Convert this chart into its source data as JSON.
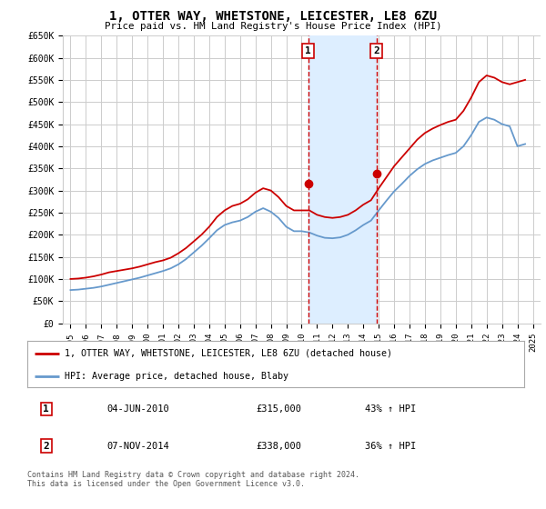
{
  "title": "1, OTTER WAY, WHETSTONE, LEICESTER, LE8 6ZU",
  "subtitle": "Price paid vs. HM Land Registry's House Price Index (HPI)",
  "ylim": [
    0,
    650000
  ],
  "yticks": [
    0,
    50000,
    100000,
    150000,
    200000,
    250000,
    300000,
    350000,
    400000,
    450000,
    500000,
    550000,
    600000,
    650000
  ],
  "ytick_labels": [
    "£0",
    "£50K",
    "£100K",
    "£150K",
    "£200K",
    "£250K",
    "£300K",
    "£350K",
    "£400K",
    "£450K",
    "£500K",
    "£550K",
    "£600K",
    "£650K"
  ],
  "xticks": [
    1995,
    1996,
    1997,
    1998,
    1999,
    2000,
    2001,
    2002,
    2003,
    2004,
    2005,
    2006,
    2007,
    2008,
    2009,
    2010,
    2011,
    2012,
    2013,
    2014,
    2015,
    2016,
    2017,
    2018,
    2019,
    2020,
    2021,
    2022,
    2023,
    2024,
    2025
  ],
  "xlim": [
    1994.5,
    2025.5
  ],
  "transaction1_x": 2010.42,
  "transaction1_price": 315000,
  "transaction1_label": "04-JUN-2010",
  "transaction1_hpi": "43% ↑ HPI",
  "transaction2_x": 2014.85,
  "transaction2_price": 338000,
  "transaction2_label": "07-NOV-2014",
  "transaction2_hpi": "36% ↑ HPI",
  "red_line_color": "#cc0000",
  "blue_line_color": "#6699cc",
  "shade_color": "#ddeeff",
  "grid_color": "#cccccc",
  "background_color": "#ffffff",
  "legend_label_red": "1, OTTER WAY, WHETSTONE, LEICESTER, LE8 6ZU (detached house)",
  "legend_label_blue": "HPI: Average price, detached house, Blaby",
  "footnote": "Contains HM Land Registry data © Crown copyright and database right 2024.\nThis data is licensed under the Open Government Licence v3.0.",
  "red_hpi_years": [
    1995,
    1995.5,
    1996,
    1996.5,
    1997,
    1997.5,
    1998,
    1998.5,
    1999,
    1999.5,
    2000,
    2000.5,
    2001,
    2001.5,
    2002,
    2002.5,
    2003,
    2003.5,
    2004,
    2004.5,
    2005,
    2005.5,
    2006,
    2006.5,
    2007,
    2007.5,
    2008,
    2008.5,
    2009,
    2009.5,
    2010,
    2010.5,
    2011,
    2011.5,
    2012,
    2012.5,
    2013,
    2013.5,
    2014,
    2014.5,
    2015,
    2015.5,
    2016,
    2016.5,
    2017,
    2017.5,
    2018,
    2018.5,
    2019,
    2019.5,
    2020,
    2020.5,
    2021,
    2021.5,
    2022,
    2022.5,
    2023,
    2023.5,
    2024,
    2024.5
  ],
  "red_hpi_values": [
    100000,
    101000,
    103000,
    106000,
    110000,
    115000,
    118000,
    121000,
    124000,
    128000,
    133000,
    138000,
    142000,
    148000,
    158000,
    170000,
    185000,
    200000,
    218000,
    240000,
    255000,
    265000,
    270000,
    280000,
    295000,
    305000,
    300000,
    285000,
    265000,
    255000,
    255000,
    255000,
    245000,
    240000,
    238000,
    240000,
    245000,
    255000,
    268000,
    278000,
    305000,
    330000,
    355000,
    375000,
    395000,
    415000,
    430000,
    440000,
    448000,
    455000,
    460000,
    480000,
    510000,
    545000,
    560000,
    555000,
    545000,
    540000,
    545000,
    550000
  ],
  "blue_hpi_years": [
    1995,
    1995.5,
    1996,
    1996.5,
    1997,
    1997.5,
    1998,
    1998.5,
    1999,
    1999.5,
    2000,
    2000.5,
    2001,
    2001.5,
    2002,
    2002.5,
    2003,
    2003.5,
    2004,
    2004.5,
    2005,
    2005.5,
    2006,
    2006.5,
    2007,
    2007.5,
    2008,
    2008.5,
    2009,
    2009.5,
    2010,
    2010.5,
    2011,
    2011.5,
    2012,
    2012.5,
    2013,
    2013.5,
    2014,
    2014.5,
    2015,
    2015.5,
    2016,
    2016.5,
    2017,
    2017.5,
    2018,
    2018.5,
    2019,
    2019.5,
    2020,
    2020.5,
    2021,
    2021.5,
    2022,
    2022.5,
    2023,
    2023.5,
    2024,
    2024.5
  ],
  "blue_hpi_values": [
    75000,
    76000,
    78000,
    80000,
    83000,
    87000,
    91000,
    95000,
    99000,
    103000,
    108000,
    113000,
    118000,
    124000,
    133000,
    145000,
    160000,
    175000,
    192000,
    210000,
    222000,
    228000,
    232000,
    240000,
    252000,
    260000,
    252000,
    238000,
    218000,
    208000,
    208000,
    205000,
    198000,
    193000,
    192000,
    194000,
    200000,
    210000,
    222000,
    232000,
    255000,
    277000,
    298000,
    315000,
    333000,
    348000,
    360000,
    368000,
    374000,
    380000,
    385000,
    400000,
    425000,
    455000,
    465000,
    460000,
    450000,
    445000,
    400000,
    405000
  ]
}
